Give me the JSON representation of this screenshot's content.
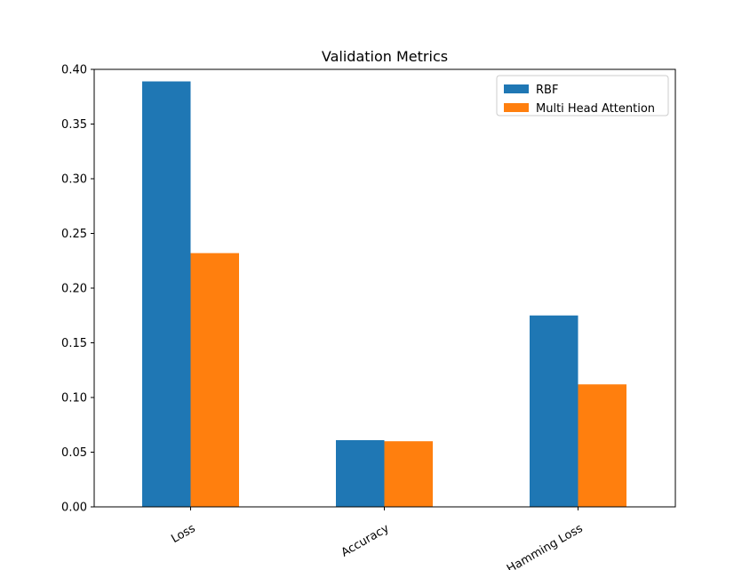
{
  "chart_data": {
    "type": "bar",
    "title": "Validation Metrics",
    "xlabel": "",
    "ylabel": "",
    "categories": [
      "Loss",
      "Accuracy",
      "Hamming Loss"
    ],
    "series": [
      {
        "name": "RBF",
        "color": "#1f77b4",
        "values": [
          0.389,
          0.061,
          0.175
        ]
      },
      {
        "name": "Multi Head Attention",
        "color": "#ff7f0e",
        "values": [
          0.232,
          0.06,
          0.112
        ]
      }
    ],
    "ylim": [
      0,
      0.4
    ],
    "yticks": [
      "0.00",
      "0.05",
      "0.10",
      "0.15",
      "0.20",
      "0.25",
      "0.30",
      "0.35",
      "0.40"
    ],
    "ytick_values": [
      0,
      0.05,
      0.1,
      0.15,
      0.2,
      0.25,
      0.3,
      0.35,
      0.4
    ],
    "xtick_rotation": 30,
    "grid": false,
    "legend_position": "top-right"
  }
}
